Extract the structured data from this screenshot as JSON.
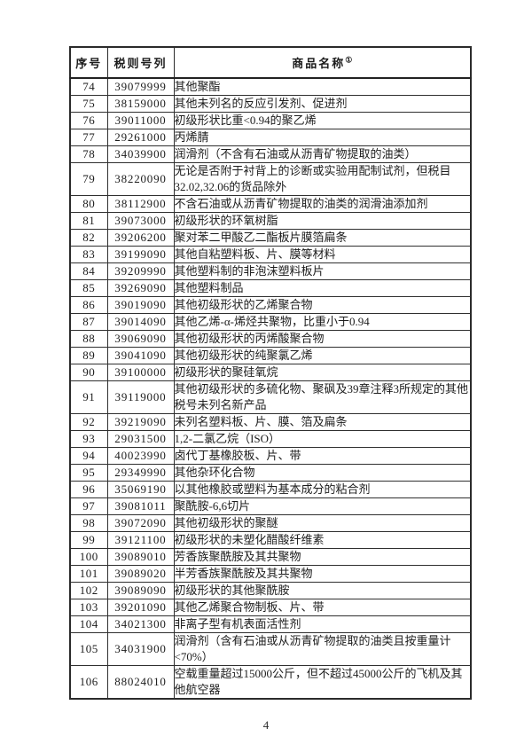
{
  "page": {
    "number": "4"
  },
  "table": {
    "headers": {
      "col_index": "序号",
      "col_code": "税则号列",
      "col_name": "商品名称",
      "col_name_note": "①"
    },
    "rows": [
      {
        "no": "74",
        "code": "39079999",
        "name": "其他聚酯"
      },
      {
        "no": "75",
        "code": "38159000",
        "name": "其他未列名的反应引发剂、促进剂"
      },
      {
        "no": "76",
        "code": "39011000",
        "name": "初级形状比重<0.94的聚乙烯"
      },
      {
        "no": "77",
        "code": "29261000",
        "name": "丙烯腈"
      },
      {
        "no": "78",
        "code": "34039900",
        "name": "润滑剂（不含有石油或从沥青矿物提取的油类）"
      },
      {
        "no": "79",
        "code": "38220090",
        "name": "无论是否附于衬背上的诊断或实验用配制试剂，但税目32.02,32.06的货品除外"
      },
      {
        "no": "80",
        "code": "38112900",
        "name": "不含石油或从沥青矿物提取的油类的润滑油添加剂"
      },
      {
        "no": "81",
        "code": "39073000",
        "name": "初级形状的环氧树脂"
      },
      {
        "no": "82",
        "code": "39206200",
        "name": "聚对苯二甲酸乙二酯板片膜箔扁条"
      },
      {
        "no": "83",
        "code": "39199090",
        "name": "其他自粘塑料板、片、膜等材料"
      },
      {
        "no": "84",
        "code": "39209990",
        "name": "其他塑料制的非泡沫塑料板片"
      },
      {
        "no": "85",
        "code": "39269090",
        "name": "其他塑料制品"
      },
      {
        "no": "86",
        "code": "39019090",
        "name": "其他初级形状的乙烯聚合物"
      },
      {
        "no": "87",
        "code": "39014090",
        "name": "其他乙烯-α-烯烃共聚物，比重小于0.94"
      },
      {
        "no": "88",
        "code": "39069090",
        "name": "其他初级形状的丙烯酸聚合物"
      },
      {
        "no": "89",
        "code": "39041090",
        "name": "其他初级形状的纯聚氯乙烯"
      },
      {
        "no": "90",
        "code": "39100000",
        "name": "初级形状的聚硅氧烷"
      },
      {
        "no": "91",
        "code": "39119000",
        "name": "其他初级形状的多硫化物、聚砜及39章注释3所规定的其他税号未列名新产品"
      },
      {
        "no": "92",
        "code": "39219090",
        "name": "未列名塑料板、片、膜、箔及扁条"
      },
      {
        "no": "93",
        "code": "29031500",
        "name": "1,2-二氯乙烷（ISO）"
      },
      {
        "no": "94",
        "code": "40023990",
        "name": "卤代丁基橡胶板、片、带"
      },
      {
        "no": "95",
        "code": "29349990",
        "name": "其他杂环化合物"
      },
      {
        "no": "96",
        "code": "35069190",
        "name": "以其他橡胶或塑料为基本成分的粘合剂"
      },
      {
        "no": "97",
        "code": "39081011",
        "name": "聚酰胺-6,6切片"
      },
      {
        "no": "98",
        "code": "39072090",
        "name": "其他初级形状的聚醚"
      },
      {
        "no": "99",
        "code": "39121100",
        "name": "初级形状的未塑化醋酸纤维素"
      },
      {
        "no": "100",
        "code": "39089010",
        "name": "芳香族聚酰胺及其共聚物"
      },
      {
        "no": "101",
        "code": "39089020",
        "name": "半芳香族聚酰胺及其共聚物"
      },
      {
        "no": "102",
        "code": "39089090",
        "name": "初级形状的其他聚酰胺"
      },
      {
        "no": "103",
        "code": "39201090",
        "name": "其他乙烯聚合物制板、片、带"
      },
      {
        "no": "104",
        "code": "34021300",
        "name": "非离子型有机表面活性剂"
      },
      {
        "no": "105",
        "code": "34031900",
        "name": "润滑剂（含有石油或从沥青矿物提取的油类且按重量计<70%）"
      },
      {
        "no": "106",
        "code": "88024010",
        "name": "空载重量超过15000公斤，但不超过45000公斤的飞机及其他航空器"
      }
    ]
  }
}
